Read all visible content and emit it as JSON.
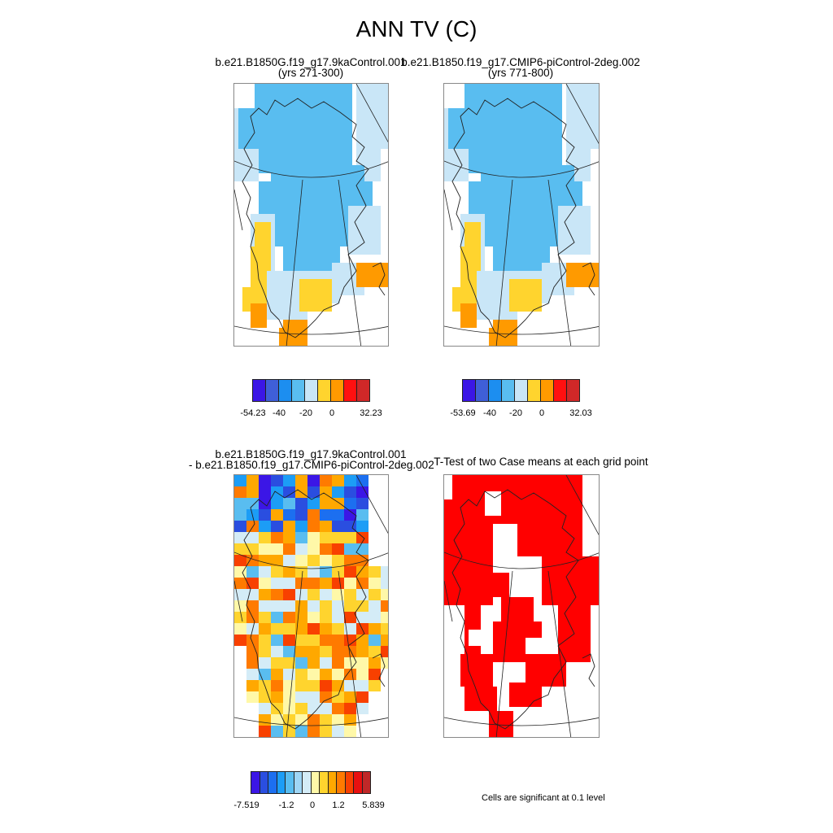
{
  "figure": {
    "title": "ANN TV (C)"
  },
  "panels": {
    "top_left": {
      "title_line1": "b.e21.B1850G.f19_g17.9kaControl.001",
      "title_line2": "(yrs 271-300)"
    },
    "top_right": {
      "title_line1": "b.e21.B1850.f19_g17.CMIP6-piControl-2deg.002",
      "title_line2": "(yrs 771-800)"
    },
    "bottom_left": {
      "title_line1": "b.e21.B1850G.f19_g17.9kaControl.001",
      "title_line2": "- b.e21.B1850.f19_g17.CMIP6-piControl-2deg.002"
    },
    "bottom_right": {
      "title_line1": "T-Test of two Case means at each grid point"
    }
  },
  "colorbars": {
    "top_left": {
      "colors": [
        "#3b16e6",
        "#3f5fd8",
        "#1c8ef0",
        "#59bdf0",
        "#c9e6f7",
        "#ffd42e",
        "#ff9a00",
        "#ff1010",
        "#d02828"
      ],
      "labels": [
        "-54.23",
        "-40",
        "-20",
        "0",
        "32.23"
      ]
    },
    "top_right": {
      "colors": [
        "#3b16e6",
        "#3f5fd8",
        "#1c8ef0",
        "#59bdf0",
        "#c9e6f7",
        "#ffd42e",
        "#ff9a00",
        "#ff1010",
        "#d02828"
      ],
      "labels": [
        "-53.69",
        "-40",
        "-20",
        "0",
        "32.03"
      ]
    },
    "bottom_left": {
      "colors": [
        "#3b16e6",
        "#2a4ee0",
        "#1c6ff0",
        "#1c9df6",
        "#59bdf0",
        "#9fd6f5",
        "#d4ecf7",
        "#fff8a8",
        "#ffd42e",
        "#ffa800",
        "#ff7a00",
        "#f84000",
        "#e81010",
        "#c02828"
      ],
      "labels": [
        "-7.519",
        "-1.2",
        "0",
        "1.2",
        "5.839"
      ]
    }
  },
  "significance_note": "Cells are significant at 0.1 level"
}
